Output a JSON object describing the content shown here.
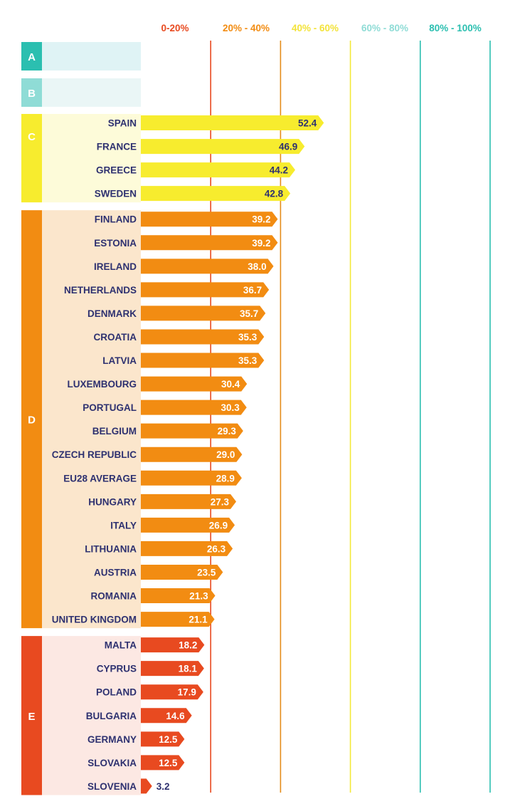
{
  "colors": {
    "A": "#2bbfb0",
    "A_light": "#dff3f5",
    "B": "#8fdcd6",
    "B_light": "#eaf6f6",
    "C": "#f7ec2e",
    "C_light": "#fdfbd9",
    "D": "#f28c12",
    "D_light": "#fbe6cc",
    "E": "#e84a20",
    "E_light": "#fce8e3",
    "country_text": "#2e3170",
    "value_dark": "#2e3170",
    "value_light": "#ffffff",
    "line_0_20": "#e84a20",
    "line_20_40": "#e48c1a",
    "line_40_60": "#f3e93a",
    "line_60_80": "#2bbfb0",
    "line_80_100": "#2bbfb0"
  },
  "legend": [
    {
      "text": "0-20%",
      "color": "#e84a20"
    },
    {
      "text": "20% - 40%",
      "color": "#f28c12"
    },
    {
      "text": "40% - 60%",
      "color": "#f3e33a"
    },
    {
      "text": "60% - 80%",
      "color": "#8fdcd6"
    },
    {
      "text": "80% - 100%",
      "color": "#2bbfb0"
    }
  ],
  "chart_data": {
    "type": "bar",
    "orientation": "horizontal",
    "xlim": [
      0,
      100
    ],
    "grid_values": [
      20,
      40,
      60,
      80,
      100
    ],
    "groups": [
      {
        "letter": "A",
        "rows": []
      },
      {
        "letter": "B",
        "rows": []
      },
      {
        "letter": "C",
        "rows": [
          {
            "country": "SPAIN",
            "value": 52.4,
            "label": "52.4"
          },
          {
            "country": "FRANCE",
            "value": 46.9,
            "label": "46.9"
          },
          {
            "country": "GREECE",
            "value": 44.2,
            "label": "44.2"
          },
          {
            "country": "SWEDEN",
            "value": 42.8,
            "label": "42.8"
          }
        ]
      },
      {
        "letter": "D",
        "rows": [
          {
            "country": "FINLAND",
            "value": 39.2,
            "label": "39.2"
          },
          {
            "country": "ESTONIA",
            "value": 39.2,
            "label": "39.2"
          },
          {
            "country": "IRELAND",
            "value": 38.0,
            "label": "38.0"
          },
          {
            "country": "NETHERLANDS",
            "value": 36.7,
            "label": "36.7"
          },
          {
            "country": "DENMARK",
            "value": 35.7,
            "label": "35.7"
          },
          {
            "country": "CROATIA",
            "value": 35.3,
            "label": "35.3"
          },
          {
            "country": "LATVIA",
            "value": 35.3,
            "label": "35.3"
          },
          {
            "country": "LUXEMBOURG",
            "value": 30.4,
            "label": "30.4"
          },
          {
            "country": "PORTUGAL",
            "value": 30.3,
            "label": "30.3"
          },
          {
            "country": "BELGIUM",
            "value": 29.3,
            "label": "29.3"
          },
          {
            "country": "CZECH REPUBLIC",
            "value": 29.0,
            "label": "29.0"
          },
          {
            "country": "EU28 AVERAGE",
            "value": 28.9,
            "label": "28.9"
          },
          {
            "country": "HUNGARY",
            "value": 27.3,
            "label": "27.3"
          },
          {
            "country": "ITALY",
            "value": 26.9,
            "label": "26.9"
          },
          {
            "country": "LITHUANIA",
            "value": 26.3,
            "label": "26.3"
          },
          {
            "country": "AUSTRIA",
            "value": 23.5,
            "label": "23.5"
          },
          {
            "country": "ROMANIA",
            "value": 21.3,
            "label": "21.3"
          },
          {
            "country": "UNITED KINGDOM",
            "value": 21.1,
            "label": "21.1"
          }
        ]
      },
      {
        "letter": "E",
        "rows": [
          {
            "country": "MALTA",
            "value": 18.2,
            "label": "18.2"
          },
          {
            "country": "CYPRUS",
            "value": 18.1,
            "label": "18.1"
          },
          {
            "country": "POLAND",
            "value": 17.9,
            "label": "17.9"
          },
          {
            "country": "BULGARIA",
            "value": 14.6,
            "label": "14.6"
          },
          {
            "country": "GERMANY",
            "value": 12.5,
            "label": "12.5"
          },
          {
            "country": "SLOVAKIA",
            "value": 12.5,
            "label": "12.5"
          },
          {
            "country": "SLOVENIA",
            "value": 3.2,
            "label": "3.2"
          }
        ]
      }
    ]
  }
}
